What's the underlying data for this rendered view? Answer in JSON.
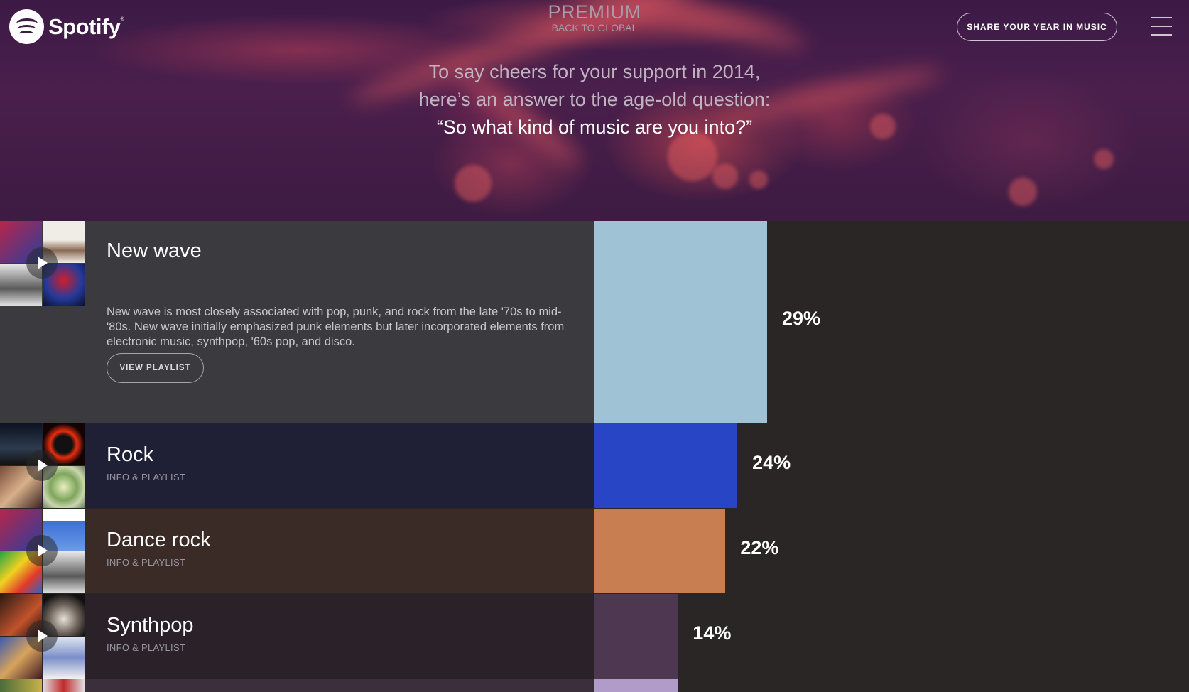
{
  "header": {
    "brand": "Spotify",
    "title": "PREMIUM",
    "back_link": "BACK TO GLOBAL",
    "share_button": "SHARE YOUR YEAR IN MUSIC"
  },
  "intro": {
    "line1": "To say cheers for your support in 2014,",
    "line2": "here’s an answer to the age-old question:",
    "line3": "“So what kind of music are you into?”"
  },
  "genres": [
    {
      "name": "New wave",
      "description": "New wave is most closely associated with pop, punk, and rock from the late '70s to mid-'80s. New wave initially emphasized punk elements but later incorporated elements from electronic music, synthpop, '60s pop, and disco.",
      "button": "VIEW PLAYLIST",
      "percent_label": "29%",
      "percent": 29,
      "bar_color": "#9fc3d4",
      "bg_color": "#3b3b3f"
    },
    {
      "name": "Rock",
      "sub": "INFO & PLAYLIST",
      "percent_label": "24%",
      "percent": 24,
      "bar_color": "#2745c4",
      "bg_color": "#1f1f36"
    },
    {
      "name": "Dance rock",
      "sub": "INFO & PLAYLIST",
      "percent_label": "22%",
      "percent": 22,
      "bar_color": "#c87e51",
      "bg_color": "#3b2b26"
    },
    {
      "name": "Synthpop",
      "sub": "INFO & PLAYLIST",
      "percent_label": "14%",
      "percent": 14,
      "bar_color": "#4e3751",
      "bg_color": "#2a2228"
    },
    {
      "percent": 14,
      "bar_color": "#b09bc9",
      "bg_color": "#3a2f3b"
    }
  ]
}
